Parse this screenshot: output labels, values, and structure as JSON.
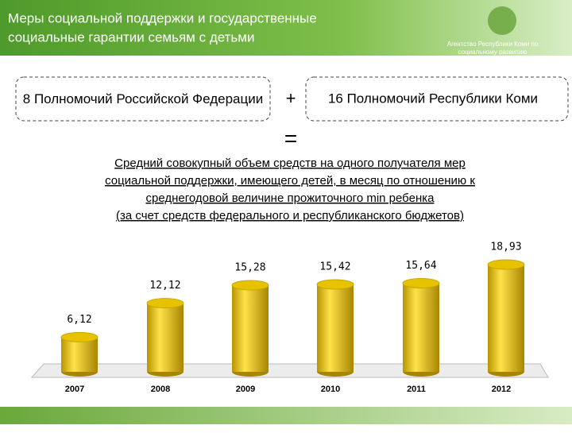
{
  "header": {
    "title_lines": [
      "Меры социальной поддержки и государственные",
      "социальные гарантии семьям с детьми"
    ],
    "agency_lines": [
      "Агентство Республики Коми по",
      "социальному развитию"
    ]
  },
  "formula": {
    "left": "8 Полномочий Российской Федерации",
    "plus": "+",
    "right": "16 Полномочий Республики Коми",
    "equals": "="
  },
  "description": [
    "Средний совокупный объем средств на одного получателя мер",
    "социальной поддержки, имеющего детей, в месяц по отношению к",
    "среднегодовой величине прожиточного min ребенка",
    "(за счет средств федерального и республиканского бюджетов)"
  ],
  "chart_data": {
    "type": "bar",
    "categories": [
      "2007",
      "2008",
      "2009",
      "2010",
      "2011",
      "2012"
    ],
    "values": [
      6.12,
      12.12,
      15.28,
      15.42,
      15.64,
      18.93
    ],
    "value_labels": [
      "6,12",
      "12,12",
      "15,28",
      "15,42",
      "15,64",
      "18,93"
    ],
    "color": "#e6c200"
  }
}
